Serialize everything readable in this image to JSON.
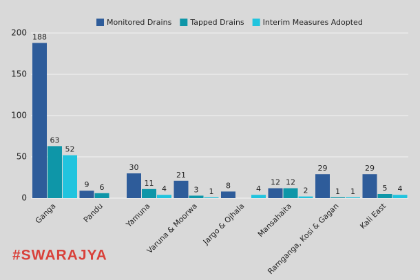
{
  "chart_data": {
    "type": "bar",
    "categories": [
      "Ganga",
      "Pandu",
      "Yamuna",
      "Varuna & Moorwa",
      "Jargo & Ojhala",
      "Mansahaita",
      "Ramganga, Kosi & Gagan",
      "Kali East"
    ],
    "series": [
      {
        "name": "Monitored Drains",
        "color": "#2e5c9a",
        "values": [
          188,
          9,
          30,
          21,
          8,
          12,
          29,
          29
        ]
      },
      {
        "name": "Tapped Drains",
        "color": "#0e96a8",
        "values": [
          63,
          6,
          11,
          3,
          null,
          12,
          1,
          5
        ]
      },
      {
        "name": "Interim Measures Adopted",
        "color": "#21c4de",
        "values": [
          52,
          null,
          4,
          1,
          4,
          2,
          1,
          4
        ]
      }
    ],
    "ylim": [
      0,
      200
    ],
    "yticks": [
      0,
      50,
      100,
      150,
      200
    ],
    "grid": true,
    "legend": "top"
  },
  "logo": "#SWARAJYA"
}
